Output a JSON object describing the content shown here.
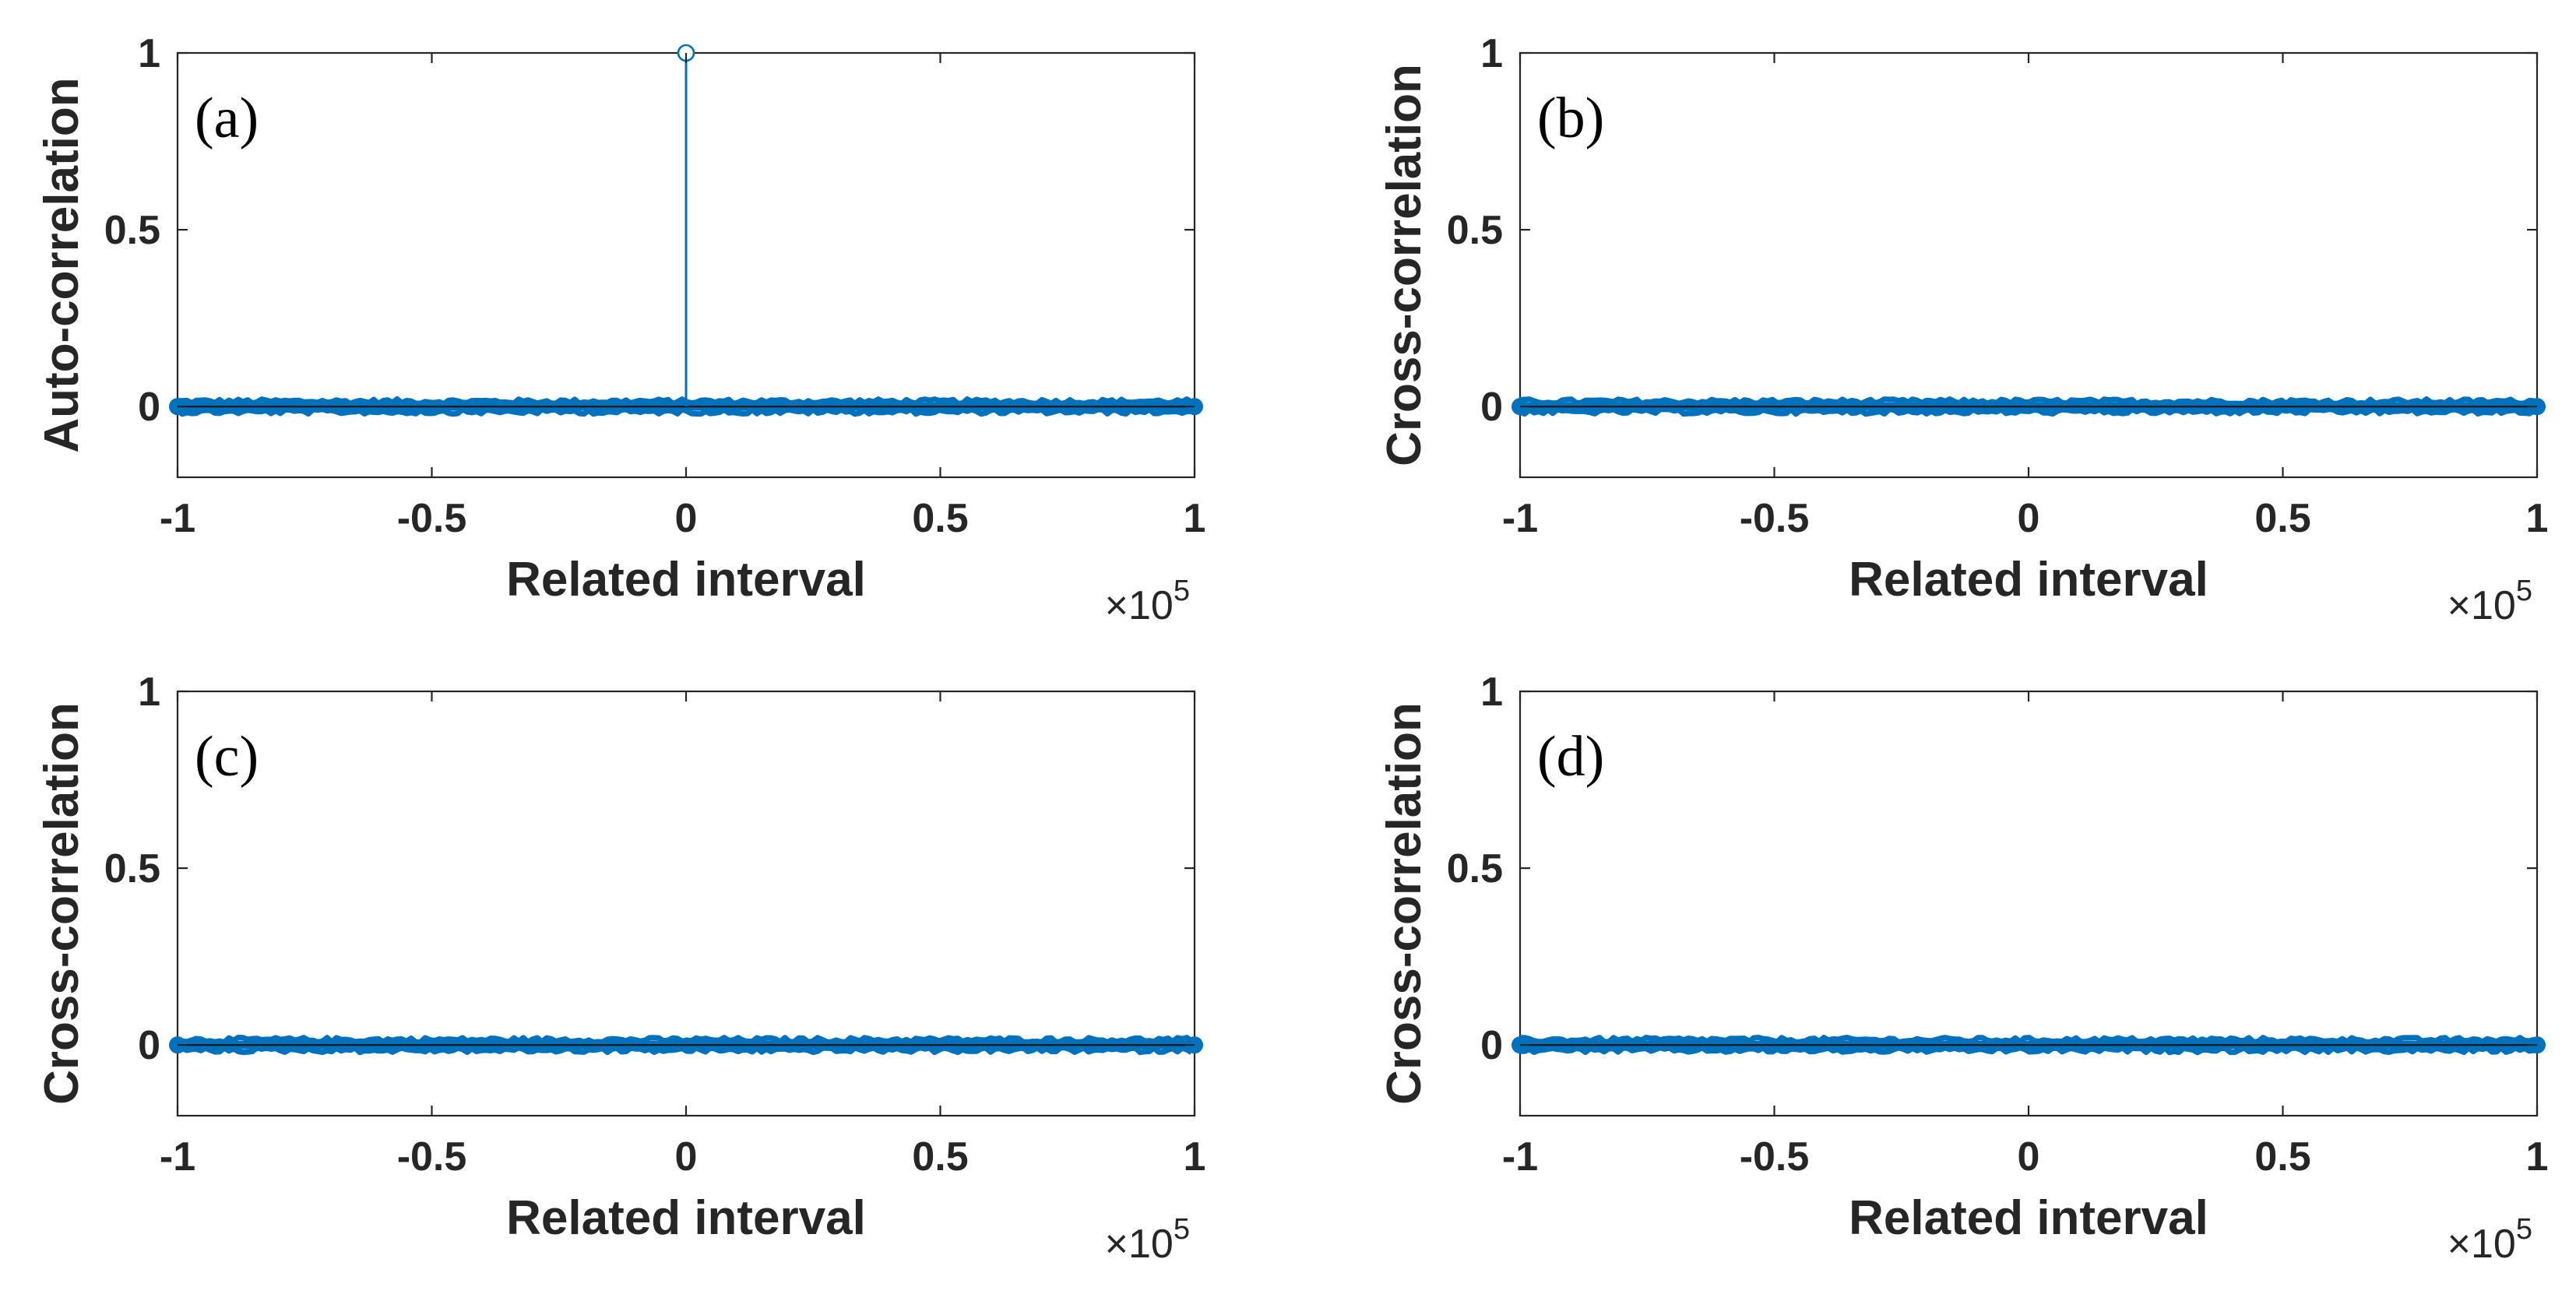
{
  "chart_data": [
    {
      "type": "stem",
      "panel_label": "(a)",
      "title": "",
      "xlabel": "Related interval",
      "ylabel": "Auto-correlation",
      "x_exponent_base": "×10",
      "x_exponent_power": "5",
      "xlim": [
        -1,
        1
      ],
      "ylim": [
        -0.2,
        1
      ],
      "xticks": [
        -1,
        -0.5,
        0,
        0.5,
        1
      ],
      "xtick_labels": [
        "-1",
        "-0.5",
        "0",
        "0.5",
        "1"
      ],
      "yticks": [
        0,
        0.5,
        1
      ],
      "ytick_labels": [
        "0",
        "0.5",
        "1"
      ],
      "grid": false,
      "series": [
        {
          "name": "auto-correlation",
          "color": "#0072BD",
          "noise_band": [
            -0.012,
            0.012
          ],
          "endpoints": [
            [
              -1,
              0
            ],
            [
              1,
              0
            ]
          ],
          "peak": {
            "x": 0,
            "y": 1
          }
        }
      ]
    },
    {
      "type": "stem",
      "panel_label": "(b)",
      "title": "",
      "xlabel": "Related interval",
      "ylabel": "Cross-correlation",
      "x_exponent_base": "×10",
      "x_exponent_power": "5",
      "xlim": [
        -1,
        1
      ],
      "ylim": [
        -0.2,
        1
      ],
      "xticks": [
        -1,
        -0.5,
        0,
        0.5,
        1
      ],
      "xtick_labels": [
        "-1",
        "-0.5",
        "0",
        "0.5",
        "1"
      ],
      "yticks": [
        0,
        0.5,
        1
      ],
      "ytick_labels": [
        "0",
        "0.5",
        "1"
      ],
      "grid": false,
      "series": [
        {
          "name": "cross-correlation",
          "color": "#0072BD",
          "noise_band": [
            -0.012,
            0.012
          ],
          "endpoints": [
            [
              -1,
              0
            ],
            [
              1,
              0
            ]
          ],
          "peak": null
        }
      ]
    },
    {
      "type": "stem",
      "panel_label": "(c)",
      "title": "",
      "xlabel": "Related interval",
      "ylabel": "Cross-correlation",
      "x_exponent_base": "×10",
      "x_exponent_power": "5",
      "xlim": [
        -1,
        1
      ],
      "ylim": [
        -0.2,
        1
      ],
      "xticks": [
        -1,
        -0.5,
        0,
        0.5,
        1
      ],
      "xtick_labels": [
        "-1",
        "-0.5",
        "0",
        "0.5",
        "1"
      ],
      "yticks": [
        0,
        0.5,
        1
      ],
      "ytick_labels": [
        "0",
        "0.5",
        "1"
      ],
      "grid": false,
      "series": [
        {
          "name": "cross-correlation",
          "color": "#0072BD",
          "noise_band": [
            -0.012,
            0.012
          ],
          "endpoints": [
            [
              -1,
              0
            ],
            [
              1,
              0
            ]
          ],
          "peak": null
        }
      ]
    },
    {
      "type": "stem",
      "panel_label": "(d)",
      "title": "",
      "xlabel": "Related interval",
      "ylabel": "Cross-correlation",
      "x_exponent_base": "×10",
      "x_exponent_power": "5",
      "xlim": [
        -1,
        1
      ],
      "ylim": [
        -0.2,
        1
      ],
      "xticks": [
        -1,
        -0.5,
        0,
        0.5,
        1
      ],
      "xtick_labels": [
        "-1",
        "-0.5",
        "0",
        "0.5",
        "1"
      ],
      "yticks": [
        0,
        0.5,
        1
      ],
      "ytick_labels": [
        "0",
        "0.5",
        "1"
      ],
      "grid": false,
      "series": [
        {
          "name": "cross-correlation",
          "color": "#0072BD",
          "noise_band": [
            -0.012,
            0.012
          ],
          "endpoints": [
            [
              -1,
              0
            ],
            [
              1,
              0
            ]
          ],
          "peak": null
        }
      ]
    }
  ]
}
